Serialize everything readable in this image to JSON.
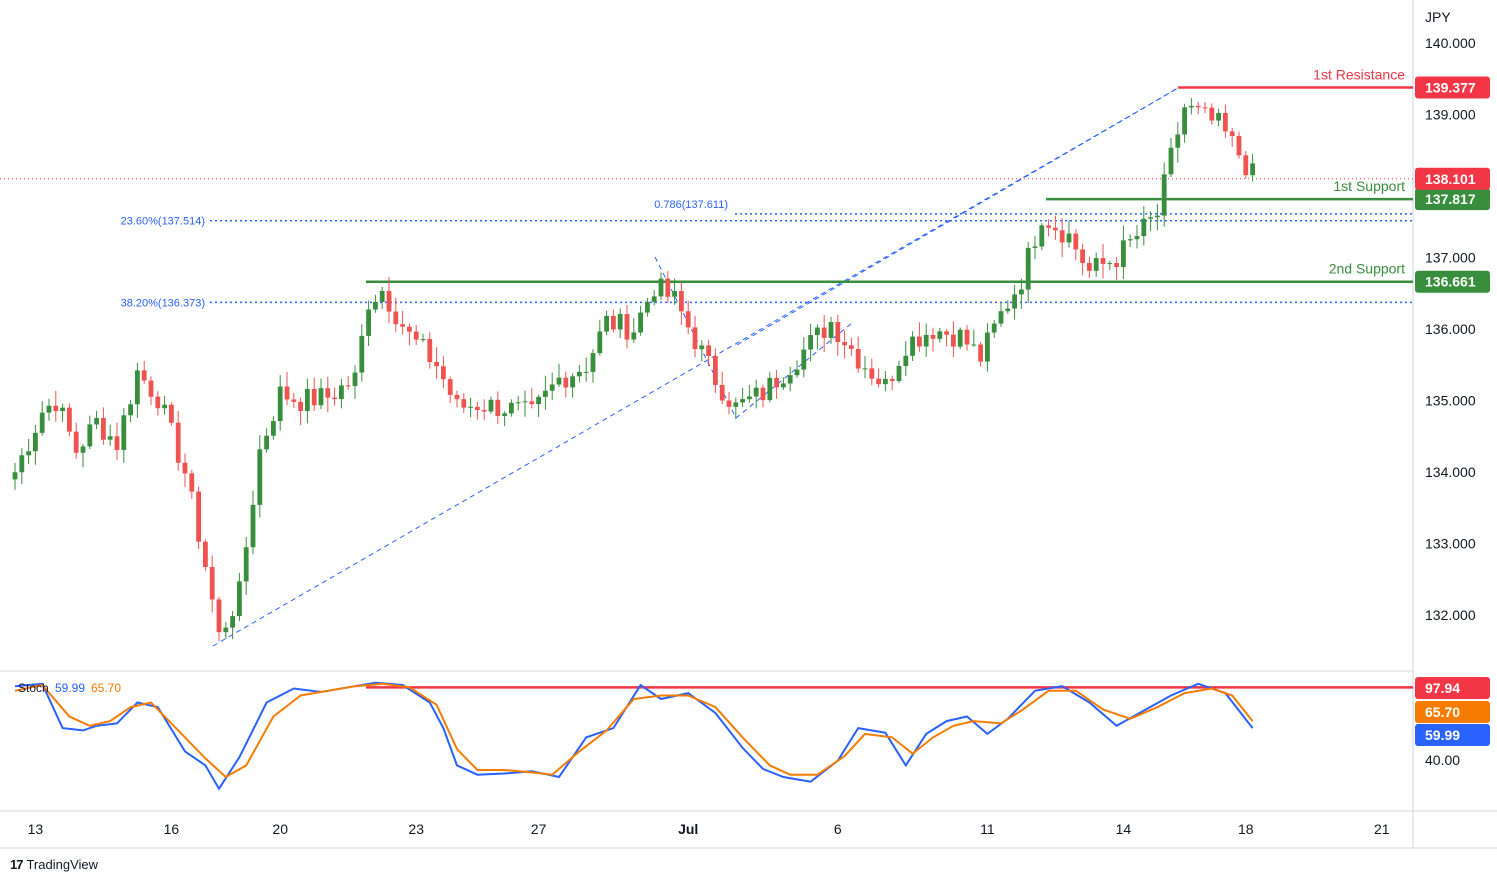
{
  "brand": {
    "logo": "17",
    "name": "TradingView"
  },
  "currency_label": "JPY",
  "last_price": "138.101",
  "stoch": {
    "label": "Stoch",
    "k_value": "59.99",
    "d_value": "65.70",
    "k_tag": "59.99",
    "d_tag": "65.70",
    "level_tag": "97.94",
    "axis_tick": "40.00"
  },
  "colors": {
    "up": "#26a69a",
    "candle_up": "#388e3c",
    "candle_down": "#ef5350",
    "resistance": "#f23645",
    "support": "#388e3c",
    "fib": "#2962ff",
    "stoch_k": "#2962ff",
    "stoch_d": "#f57c00",
    "last": "#f23645"
  },
  "levels": [
    {
      "title": "1st Resistance",
      "price": 139.377,
      "tag": "139.377",
      "kind": "resistance"
    },
    {
      "title": "1st Support",
      "price": 137.817,
      "tag": "137.817",
      "kind": "support"
    },
    {
      "title": "2nd Support",
      "price": 136.661,
      "tag": "136.661",
      "kind": "support"
    }
  ],
  "fib_labels": [
    {
      "text": "0.786(137.611)",
      "price": 137.611
    },
    {
      "text": "23.60%(137.514)",
      "price": 137.514
    },
    {
      "text": "38.20%(136.373)",
      "price": 136.373
    }
  ],
  "chart_data": {
    "type": "candlestick",
    "symbol_currency": "JPY",
    "y_range": [
      131.3,
      140.35
    ],
    "y_ticks": [
      "140.000",
      "139.000",
      "137.000",
      "136.000",
      "135.000",
      "134.000",
      "133.000",
      "132.000"
    ],
    "y_tick_values": [
      140,
      139,
      137,
      136,
      135,
      134,
      133,
      132
    ],
    "x_tick_labels": [
      "13",
      "16",
      "20",
      "23",
      "27",
      "Jul",
      "6",
      "11",
      "14",
      "18",
      "21"
    ],
    "x_tick_index": [
      3,
      23,
      39,
      59,
      77,
      99,
      121,
      143,
      163,
      181,
      201
    ],
    "n_bars": 183,
    "key_points": [
      {
        "i": 0,
        "price": 134.0
      },
      {
        "i": 4,
        "price": 134.85
      },
      {
        "i": 6,
        "price": 135.0
      },
      {
        "i": 9,
        "price": 134.3
      },
      {
        "i": 12,
        "price": 134.7
      },
      {
        "i": 15,
        "price": 134.4
      },
      {
        "i": 18,
        "price": 135.4
      },
      {
        "i": 21,
        "price": 135.05
      },
      {
        "i": 25,
        "price": 134.0
      },
      {
        "i": 28,
        "price": 132.7
      },
      {
        "i": 30,
        "price": 131.7
      },
      {
        "i": 33,
        "price": 132.3
      },
      {
        "i": 36,
        "price": 134.3
      },
      {
        "i": 39,
        "price": 135.1
      },
      {
        "i": 42,
        "price": 135.0
      },
      {
        "i": 46,
        "price": 135.05
      },
      {
        "i": 50,
        "price": 135.3
      },
      {
        "i": 52,
        "price": 136.4
      },
      {
        "i": 54,
        "price": 136.55
      },
      {
        "i": 58,
        "price": 135.9
      },
      {
        "i": 62,
        "price": 135.5
      },
      {
        "i": 65,
        "price": 134.9
      },
      {
        "i": 68,
        "price": 134.95
      },
      {
        "i": 72,
        "price": 134.9
      },
      {
        "i": 76,
        "price": 134.8
      },
      {
        "i": 80,
        "price": 135.3
      },
      {
        "i": 84,
        "price": 135.5
      },
      {
        "i": 87,
        "price": 136.1
      },
      {
        "i": 91,
        "price": 136.0
      },
      {
        "i": 94,
        "price": 136.6
      },
      {
        "i": 97,
        "price": 136.4
      },
      {
        "i": 103,
        "price": 135.3
      },
      {
        "i": 106,
        "price": 134.9
      },
      {
        "i": 110,
        "price": 135.1
      },
      {
        "i": 114,
        "price": 135.5
      },
      {
        "i": 117,
        "price": 135.8
      },
      {
        "i": 120,
        "price": 136.1
      },
      {
        "i": 124,
        "price": 135.6
      },
      {
        "i": 128,
        "price": 135.2
      },
      {
        "i": 131,
        "price": 135.8
      },
      {
        "i": 135,
        "price": 136.0
      },
      {
        "i": 139,
        "price": 135.9
      },
      {
        "i": 142,
        "price": 135.6
      },
      {
        "i": 145,
        "price": 136.2
      },
      {
        "i": 148,
        "price": 136.7
      },
      {
        "i": 151,
        "price": 137.6
      },
      {
        "i": 155,
        "price": 137.3
      },
      {
        "i": 158,
        "price": 136.8
      },
      {
        "i": 162,
        "price": 137.0
      },
      {
        "i": 165,
        "price": 137.3
      },
      {
        "i": 168,
        "price": 137.6
      },
      {
        "i": 170,
        "price": 138.4
      },
      {
        "i": 172,
        "price": 139.1
      },
      {
        "i": 174,
        "price": 139.0
      },
      {
        "i": 177,
        "price": 138.85
      },
      {
        "i": 180,
        "price": 138.45
      },
      {
        "i": 182,
        "price": 138.15
      }
    ],
    "stoch_k": {
      "name": "K",
      "points": [
        [
          0,
          96
        ],
        [
          4,
          98
        ],
        [
          7,
          60
        ],
        [
          10,
          58
        ],
        [
          12,
          62
        ],
        [
          15,
          64
        ],
        [
          18,
          82
        ],
        [
          21,
          78
        ],
        [
          25,
          40
        ],
        [
          28,
          28
        ],
        [
          30,
          8
        ],
        [
          33,
          35
        ],
        [
          37,
          82
        ],
        [
          41,
          94
        ],
        [
          45,
          91
        ],
        [
          49,
          95
        ],
        [
          53,
          99
        ],
        [
          57,
          97
        ],
        [
          61,
          82
        ],
        [
          63,
          60
        ],
        [
          65,
          28
        ],
        [
          68,
          20
        ],
        [
          72,
          21
        ],
        [
          76,
          23
        ],
        [
          80,
          18
        ],
        [
          84,
          52
        ],
        [
          88,
          60
        ],
        [
          92,
          97
        ],
        [
          95,
          85
        ],
        [
          99,
          90
        ],
        [
          103,
          73
        ],
        [
          107,
          43
        ],
        [
          110,
          25
        ],
        [
          113,
          18
        ],
        [
          117,
          14
        ],
        [
          121,
          32
        ],
        [
          124,
          60
        ],
        [
          128,
          56
        ],
        [
          131,
          28
        ],
        [
          134,
          55
        ],
        [
          137,
          66
        ],
        [
          140,
          70
        ],
        [
          143,
          55
        ],
        [
          146,
          68
        ],
        [
          150,
          92
        ],
        [
          154,
          96
        ],
        [
          158,
          82
        ],
        [
          162,
          62
        ],
        [
          166,
          75
        ],
        [
          170,
          88
        ],
        [
          174,
          98
        ],
        [
          178,
          90
        ],
        [
          182,
          60
        ]
      ]
    },
    "stoch_d": {
      "name": "D",
      "points": [
        [
          0,
          92
        ],
        [
          4,
          97
        ],
        [
          8,
          70
        ],
        [
          11,
          62
        ],
        [
          14,
          66
        ],
        [
          17,
          78
        ],
        [
          20,
          82
        ],
        [
          24,
          58
        ],
        [
          28,
          34
        ],
        [
          31,
          18
        ],
        [
          34,
          28
        ],
        [
          38,
          70
        ],
        [
          42,
          88
        ],
        [
          46,
          92
        ],
        [
          50,
          96
        ],
        [
          54,
          98
        ],
        [
          58,
          95
        ],
        [
          62,
          80
        ],
        [
          65,
          42
        ],
        [
          68,
          24
        ],
        [
          72,
          24
        ],
        [
          76,
          22
        ],
        [
          79,
          20
        ],
        [
          83,
          40
        ],
        [
          87,
          58
        ],
        [
          91,
          85
        ],
        [
          95,
          88
        ],
        [
          99,
          88
        ],
        [
          103,
          78
        ],
        [
          107,
          52
        ],
        [
          111,
          28
        ],
        [
          114,
          20
        ],
        [
          118,
          20
        ],
        [
          122,
          36
        ],
        [
          125,
          55
        ],
        [
          129,
          52
        ],
        [
          132,
          38
        ],
        [
          135,
          52
        ],
        [
          138,
          62
        ],
        [
          141,
          66
        ],
        [
          145,
          64
        ],
        [
          148,
          75
        ],
        [
          152,
          92
        ],
        [
          156,
          92
        ],
        [
          160,
          76
        ],
        [
          164,
          68
        ],
        [
          168,
          78
        ],
        [
          172,
          90
        ],
        [
          176,
          94
        ],
        [
          179,
          88
        ],
        [
          182,
          66
        ]
      ]
    },
    "stoch_range": [
      0,
      100
    ]
  }
}
